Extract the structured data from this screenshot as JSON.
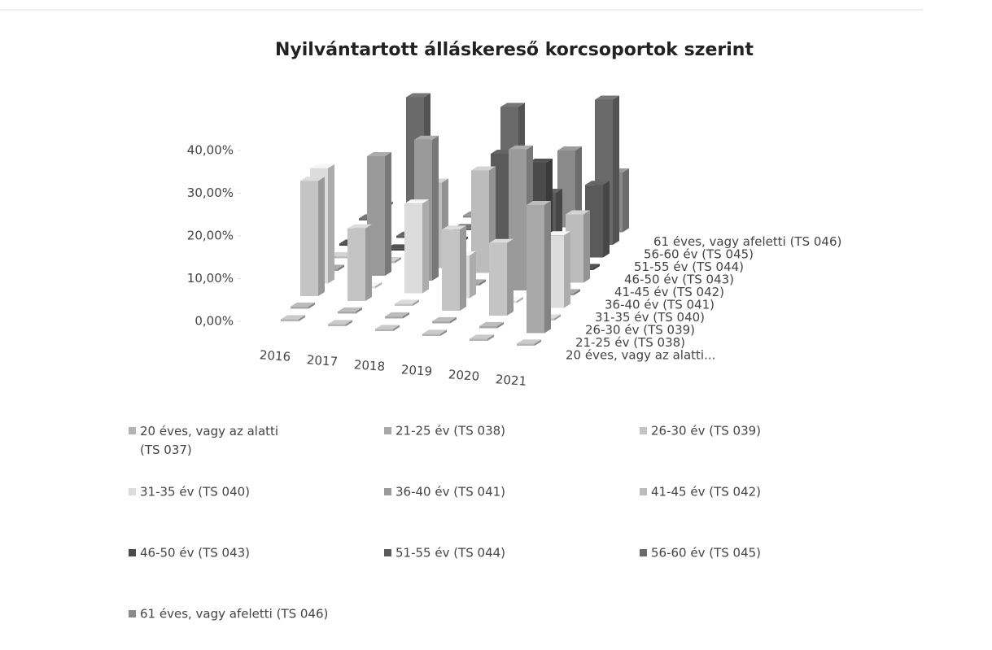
{
  "chart_data": {
    "type": "bar3d",
    "title": "Nyilvántartott álláskereső korcsoportok szerint",
    "categories": [
      "2016",
      "2017",
      "2018",
      "2019",
      "2020",
      "2021"
    ],
    "series": [
      {
        "name": "20 éves, vagy az alatti (TS 037)",
        "short_name": "20 éves, vagy az alatti...",
        "color": "#b4b4b4",
        "values": [
          0.5,
          0.5,
          0.5,
          0.5,
          0.5,
          0.5
        ]
      },
      {
        "name": "21-25 év (TS 038)",
        "short_name": "21-25 év (TS 038)",
        "color": "#a8a8a8",
        "values": [
          0.5,
          0.5,
          0.5,
          0.5,
          0.5,
          30
        ]
      },
      {
        "name": "26-30 év (TS 039)",
        "short_name": "26-30 év (TS 039)",
        "color": "#c4c4c4",
        "values": [
          27,
          17,
          0.5,
          19,
          17,
          0.5
        ]
      },
      {
        "name": "31-35 év (TS 040)",
        "short_name": "31-35 év (TS 040)",
        "color": "#dcdcdc",
        "values": [
          27,
          0.5,
          21,
          10,
          0.5,
          17
        ]
      },
      {
        "name": "36-40 év (TS 041)",
        "short_name": "36-40 év (TS 041)",
        "color": "#9a9a9a",
        "values": [
          0.5,
          28,
          33,
          0.5,
          33,
          0.5
        ]
      },
      {
        "name": "41-45 év (TS 042)",
        "short_name": "41-45 év (TS 042)",
        "color": "#bcbcbc",
        "values": [
          0.5,
          0.5,
          20,
          24,
          0.5,
          16
        ]
      },
      {
        "name": "46-50 év (TS 043)",
        "short_name": "46-50 év (TS 043)",
        "color": "#4a4a4a",
        "values": [
          0.5,
          0.5,
          0.5,
          0.5,
          24,
          0.5
        ]
      },
      {
        "name": "51-55 év (TS 044)",
        "short_name": "51-55 év (TS 044)",
        "color": "#5a5a5a",
        "values": [
          0.5,
          0.5,
          0.5,
          22,
          14,
          17
        ]
      },
      {
        "name": "56-60 év (TS 045)",
        "short_name": "56-60 év (TS 045)",
        "color": "#6a6a6a",
        "values": [
          0.5,
          30,
          0.5,
          30,
          0.5,
          34
        ]
      },
      {
        "name": "61 éves, vagy afeletti (TS 046)",
        "short_name": "61 éves, vagy afeletti (TS 046)",
        "color": "#8a8a8a",
        "values": [
          0.5,
          0.5,
          0.5,
          0.5,
          18,
          14
        ]
      }
    ],
    "ylim": [
      0,
      45
    ],
    "yticks": [
      {
        "value": 0,
        "label": "0,00%"
      },
      {
        "value": 10,
        "label": "10,00%"
      },
      {
        "value": 20,
        "label": "20,00%"
      },
      {
        "value": 30,
        "label": "30,00%"
      },
      {
        "value": 40,
        "label": "40,00%"
      }
    ],
    "legend": "bottom"
  }
}
